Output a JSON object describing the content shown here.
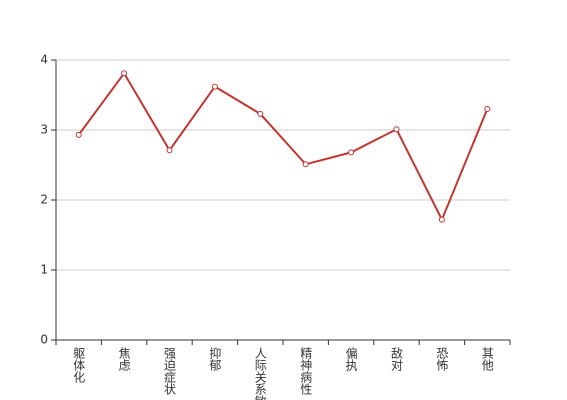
{
  "chart_data": {
    "type": "line",
    "categories": [
      "躯体化",
      "焦虑",
      "强迫症状",
      "抑郁",
      "人际关系敏感",
      "精神病性",
      "偏执",
      "敌对",
      "恐怖",
      "其他"
    ],
    "series": [
      {
        "color": "#c23531",
        "values": [
          2.93,
          3.81,
          2.71,
          3.62,
          3.23,
          2.51,
          2.68,
          3.01,
          1.72,
          3.3
        ]
      }
    ],
    "ylim": [
      0,
      4
    ],
    "yticks": [
      0,
      1,
      2,
      3,
      4
    ],
    "grid": true
  }
}
